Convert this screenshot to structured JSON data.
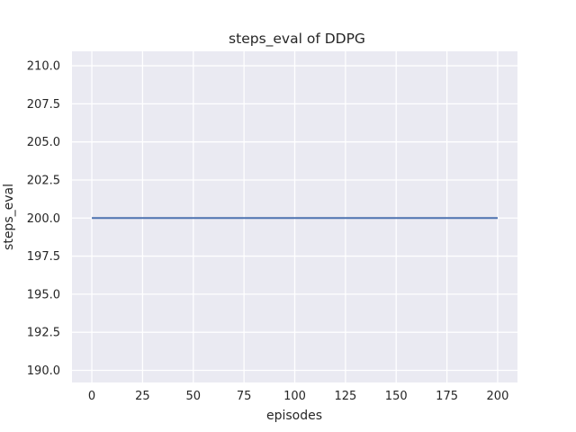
{
  "chart_data": {
    "type": "line",
    "title": "steps_eval of DDPG",
    "xlabel": "episodes",
    "ylabel": "steps_eval",
    "x_ticks": [
      0,
      25,
      50,
      75,
      100,
      125,
      150,
      175,
      200
    ],
    "x_tick_labels": [
      "0",
      "25",
      "50",
      "75",
      "100",
      "125",
      "150",
      "175",
      "200"
    ],
    "y_ticks": [
      190.0,
      192.5,
      195.0,
      197.5,
      200.0,
      202.5,
      205.0,
      207.5,
      210.0
    ],
    "y_tick_labels": [
      "190.0",
      "192.5",
      "195.0",
      "197.5",
      "200.0",
      "202.5",
      "205.0",
      "207.5",
      "210.0"
    ],
    "xlim": [
      -9.78,
      209.78
    ],
    "ylim": [
      189.2,
      210.95
    ],
    "grid": true,
    "legend": false,
    "series": [
      {
        "name": "steps_eval",
        "color": "#4c72b0",
        "x": [
          0,
          200
        ],
        "y": [
          200,
          200
        ]
      }
    ],
    "colors": {
      "figure_background": "#ffffff",
      "plot_background": "#eaeaf2",
      "gridline": "#ffffff",
      "text": "#262626",
      "line": "#4c72b0"
    }
  }
}
